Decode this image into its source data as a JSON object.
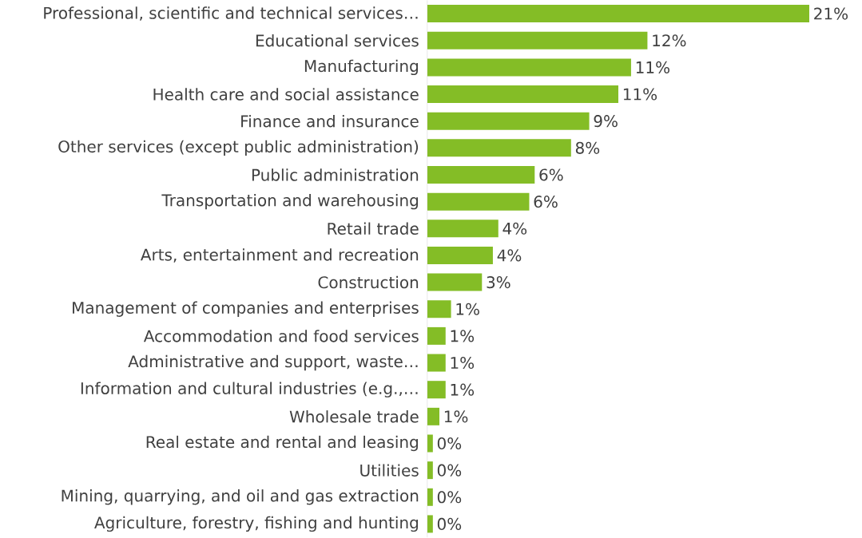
{
  "chart_data": {
    "type": "bar",
    "orientation": "horizontal",
    "color": "#84bd26",
    "categories": [
      "Professional, scientific and technical services…",
      "Educational services",
      "Manufacturing",
      "Health care and social assistance",
      "Finance and insurance",
      "Other services (except public administration)",
      "Public administration",
      "Transportation and warehousing",
      "Retail trade",
      "Arts, entertainment and recreation",
      "Construction",
      "Management of companies and enterprises",
      "Accommodation and food services",
      "Administrative and support, waste…",
      "Information and cultural industries (e.g.,…",
      "Wholesale trade",
      "Real estate and rental and leasing",
      "Utilities",
      "Mining, quarrying, and oil and gas extraction",
      "Agriculture, forestry, fishing and hunting"
    ],
    "values": [
      21,
      12.1,
      11.2,
      10.5,
      8.9,
      7.9,
      5.9,
      5.6,
      3.9,
      3.6,
      3.0,
      1.3,
      1.0,
      1.0,
      1.0,
      0.66,
      0.3,
      0.3,
      0.3,
      0.3
    ],
    "value_labels": [
      "21%",
      "12%",
      "11%",
      "11%",
      "9%",
      "8%",
      "6%",
      "6%",
      "4%",
      "4%",
      "3%",
      "1%",
      "1%",
      "1%",
      "1%",
      "1%",
      "0%",
      "0%",
      "0%",
      "0%"
    ]
  }
}
